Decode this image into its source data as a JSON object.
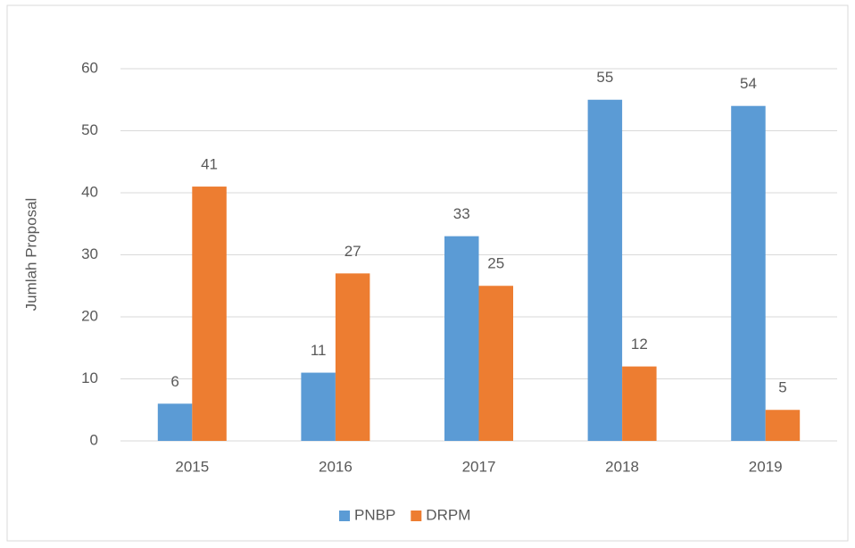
{
  "chart_data": {
    "type": "bar",
    "y_label": "Jumlah Proposal",
    "categories": [
      "2015",
      "2016",
      "2017",
      "2018",
      "2019"
    ],
    "series": [
      {
        "name": "PNBP",
        "color": "#5b9bd5",
        "values": [
          6,
          11,
          33,
          55,
          54
        ]
      },
      {
        "name": "DRPM",
        "color": "#ed7d31",
        "values": [
          41,
          27,
          25,
          12,
          5
        ]
      }
    ],
    "ylim": [
      0,
      60
    ],
    "yticks": [
      0,
      10,
      20,
      30,
      40,
      50,
      60
    ],
    "grid": true,
    "legend": "bottom"
  }
}
